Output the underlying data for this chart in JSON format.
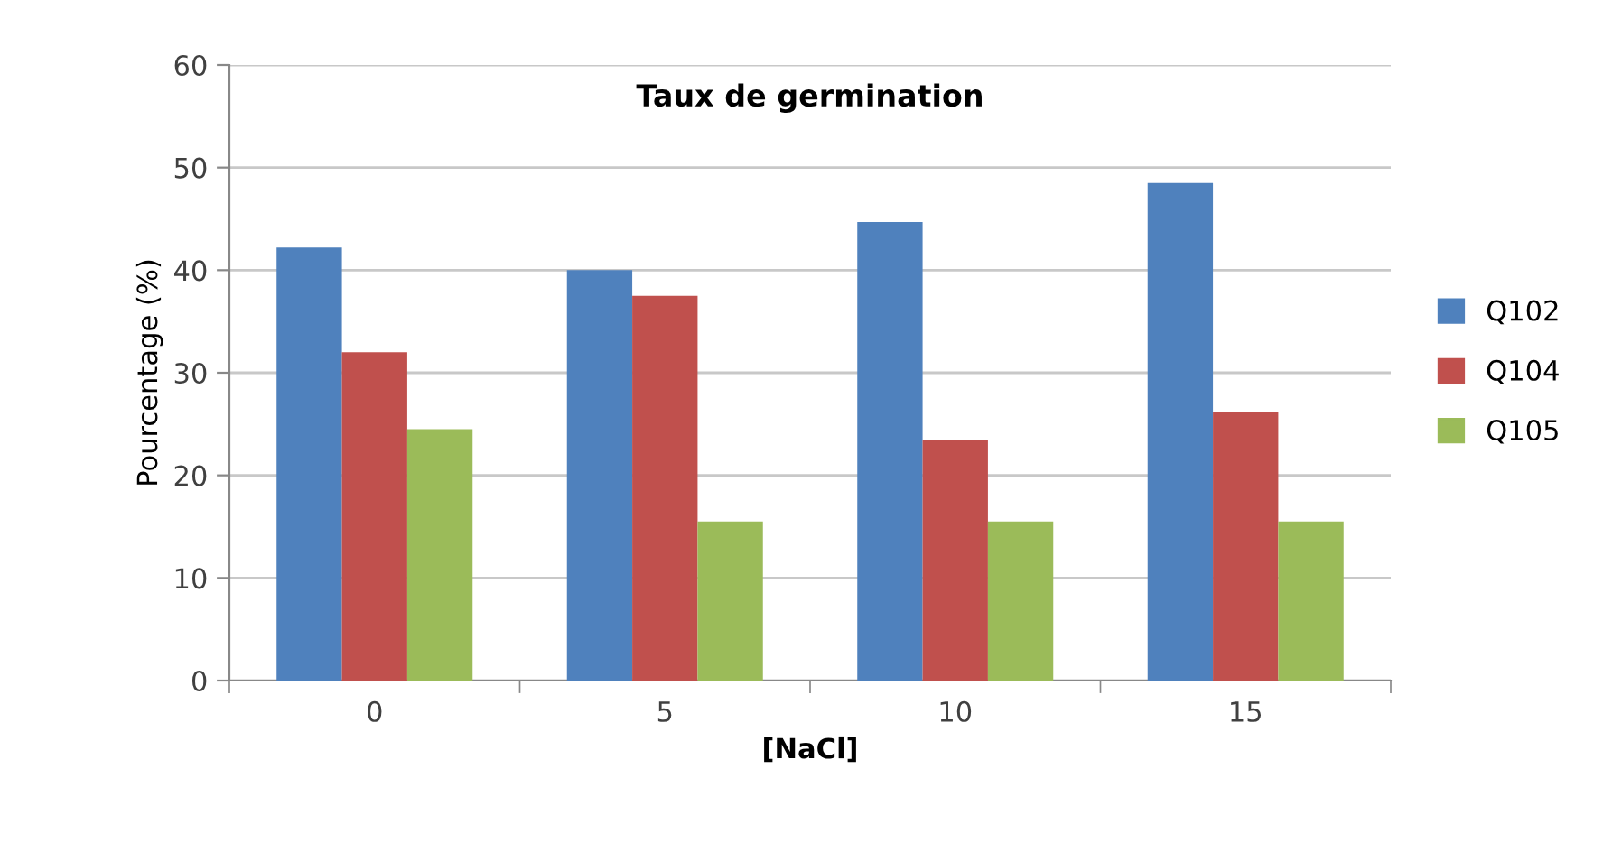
{
  "chart_data": {
    "type": "bar",
    "title": "Taux de germination",
    "xlabel": "[NaCl]",
    "ylabel": "Pourcentage (%)",
    "categories": [
      "0",
      "5",
      "10",
      "15"
    ],
    "series": [
      {
        "name": "Q102",
        "color": "#4f81bd",
        "values": [
          42.2,
          40,
          44.7,
          48.5
        ]
      },
      {
        "name": "Q104",
        "color": "#c0504d",
        "values": [
          32,
          37.5,
          23.5,
          26.2
        ]
      },
      {
        "name": "Q105",
        "color": "#9bbb59",
        "values": [
          24.5,
          15.5,
          15.5,
          15.5
        ]
      }
    ],
    "ylim": [
      0,
      60
    ],
    "yticks": [
      0,
      10,
      20,
      30,
      40,
      50,
      60
    ],
    "grid": "y",
    "legend": "right"
  }
}
